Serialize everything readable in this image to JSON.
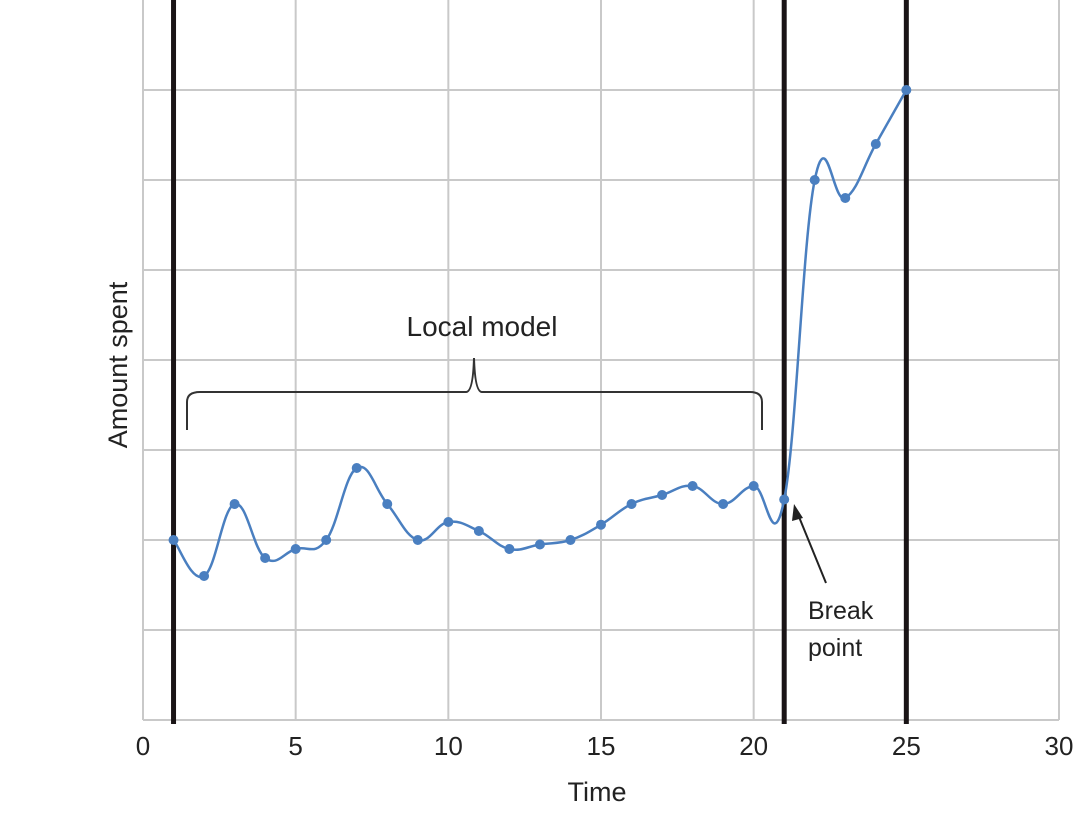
{
  "chart_data": {
    "type": "line",
    "title": "",
    "xlabel": "Time",
    "ylabel": "Amount spent",
    "xlim": [
      0,
      30
    ],
    "ylim": [
      0,
      8
    ],
    "x_ticks": [
      "0",
      "5",
      "10",
      "15",
      "20",
      "25",
      "30"
    ],
    "grid": true,
    "line_color": "#4a7fc0",
    "vertical_lines_x": [
      1,
      21,
      25
    ],
    "series": [
      {
        "x": [
          1,
          2,
          3,
          4,
          5,
          6,
          7,
          8,
          9,
          10,
          11,
          12,
          13,
          14,
          15,
          16,
          17,
          18,
          19,
          20,
          21,
          22,
          23,
          24,
          25
        ],
        "values": [
          2.0,
          1.6,
          2.4,
          1.8,
          1.9,
          2.0,
          2.8,
          2.4,
          2.0,
          2.2,
          2.1,
          1.9,
          1.95,
          2.0,
          2.17,
          2.4,
          2.5,
          2.6,
          2.4,
          2.6,
          2.45,
          6.0,
          5.8,
          6.4,
          7.0
        ]
      }
    ],
    "annotations": {
      "local_model": "Local model",
      "break_line1": "Break",
      "break_line2": "point"
    }
  }
}
